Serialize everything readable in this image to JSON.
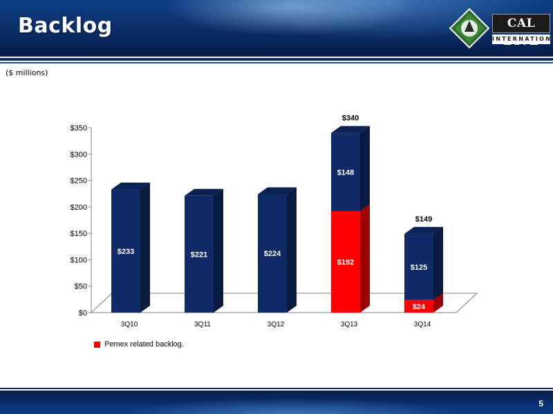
{
  "slide": {
    "title": "Backlog",
    "units": "($ millions)",
    "page_number": "5"
  },
  "logo": {
    "word": "CAL DIVE",
    "sub": "INTERNATIONAL"
  },
  "legend": {
    "label": "Pemex related backlog."
  },
  "colors": {
    "navy": "#0f2a66",
    "red": "#ff0000",
    "header": "#0a2d66"
  },
  "chart_data": {
    "type": "bar",
    "stacked": true,
    "three_d": true,
    "categories": [
      "3Q10",
      "3Q11",
      "3Q12",
      "3Q13",
      "3Q14"
    ],
    "series": [
      {
        "name": "Pemex related backlog.",
        "values": [
          0,
          0,
          0,
          192,
          24
        ],
        "labels": [
          "",
          "",
          "",
          "$192",
          "$24"
        ],
        "color": "#ff0000"
      },
      {
        "values": [
          233,
          221,
          224,
          148,
          125
        ],
        "labels": [
          "$233",
          "$221",
          "$224",
          "$148",
          "$125"
        ],
        "color": "#0f2a66"
      }
    ],
    "totals": [
      "",
      "",
      "",
      "$340",
      "$149"
    ],
    "y_ticks": [
      "$0",
      "$50",
      "$100",
      "$150",
      "$200",
      "$250",
      "$300",
      "$350"
    ],
    "ylim": [
      0,
      350
    ],
    "grid": false,
    "legend_position": "bottom-left"
  }
}
